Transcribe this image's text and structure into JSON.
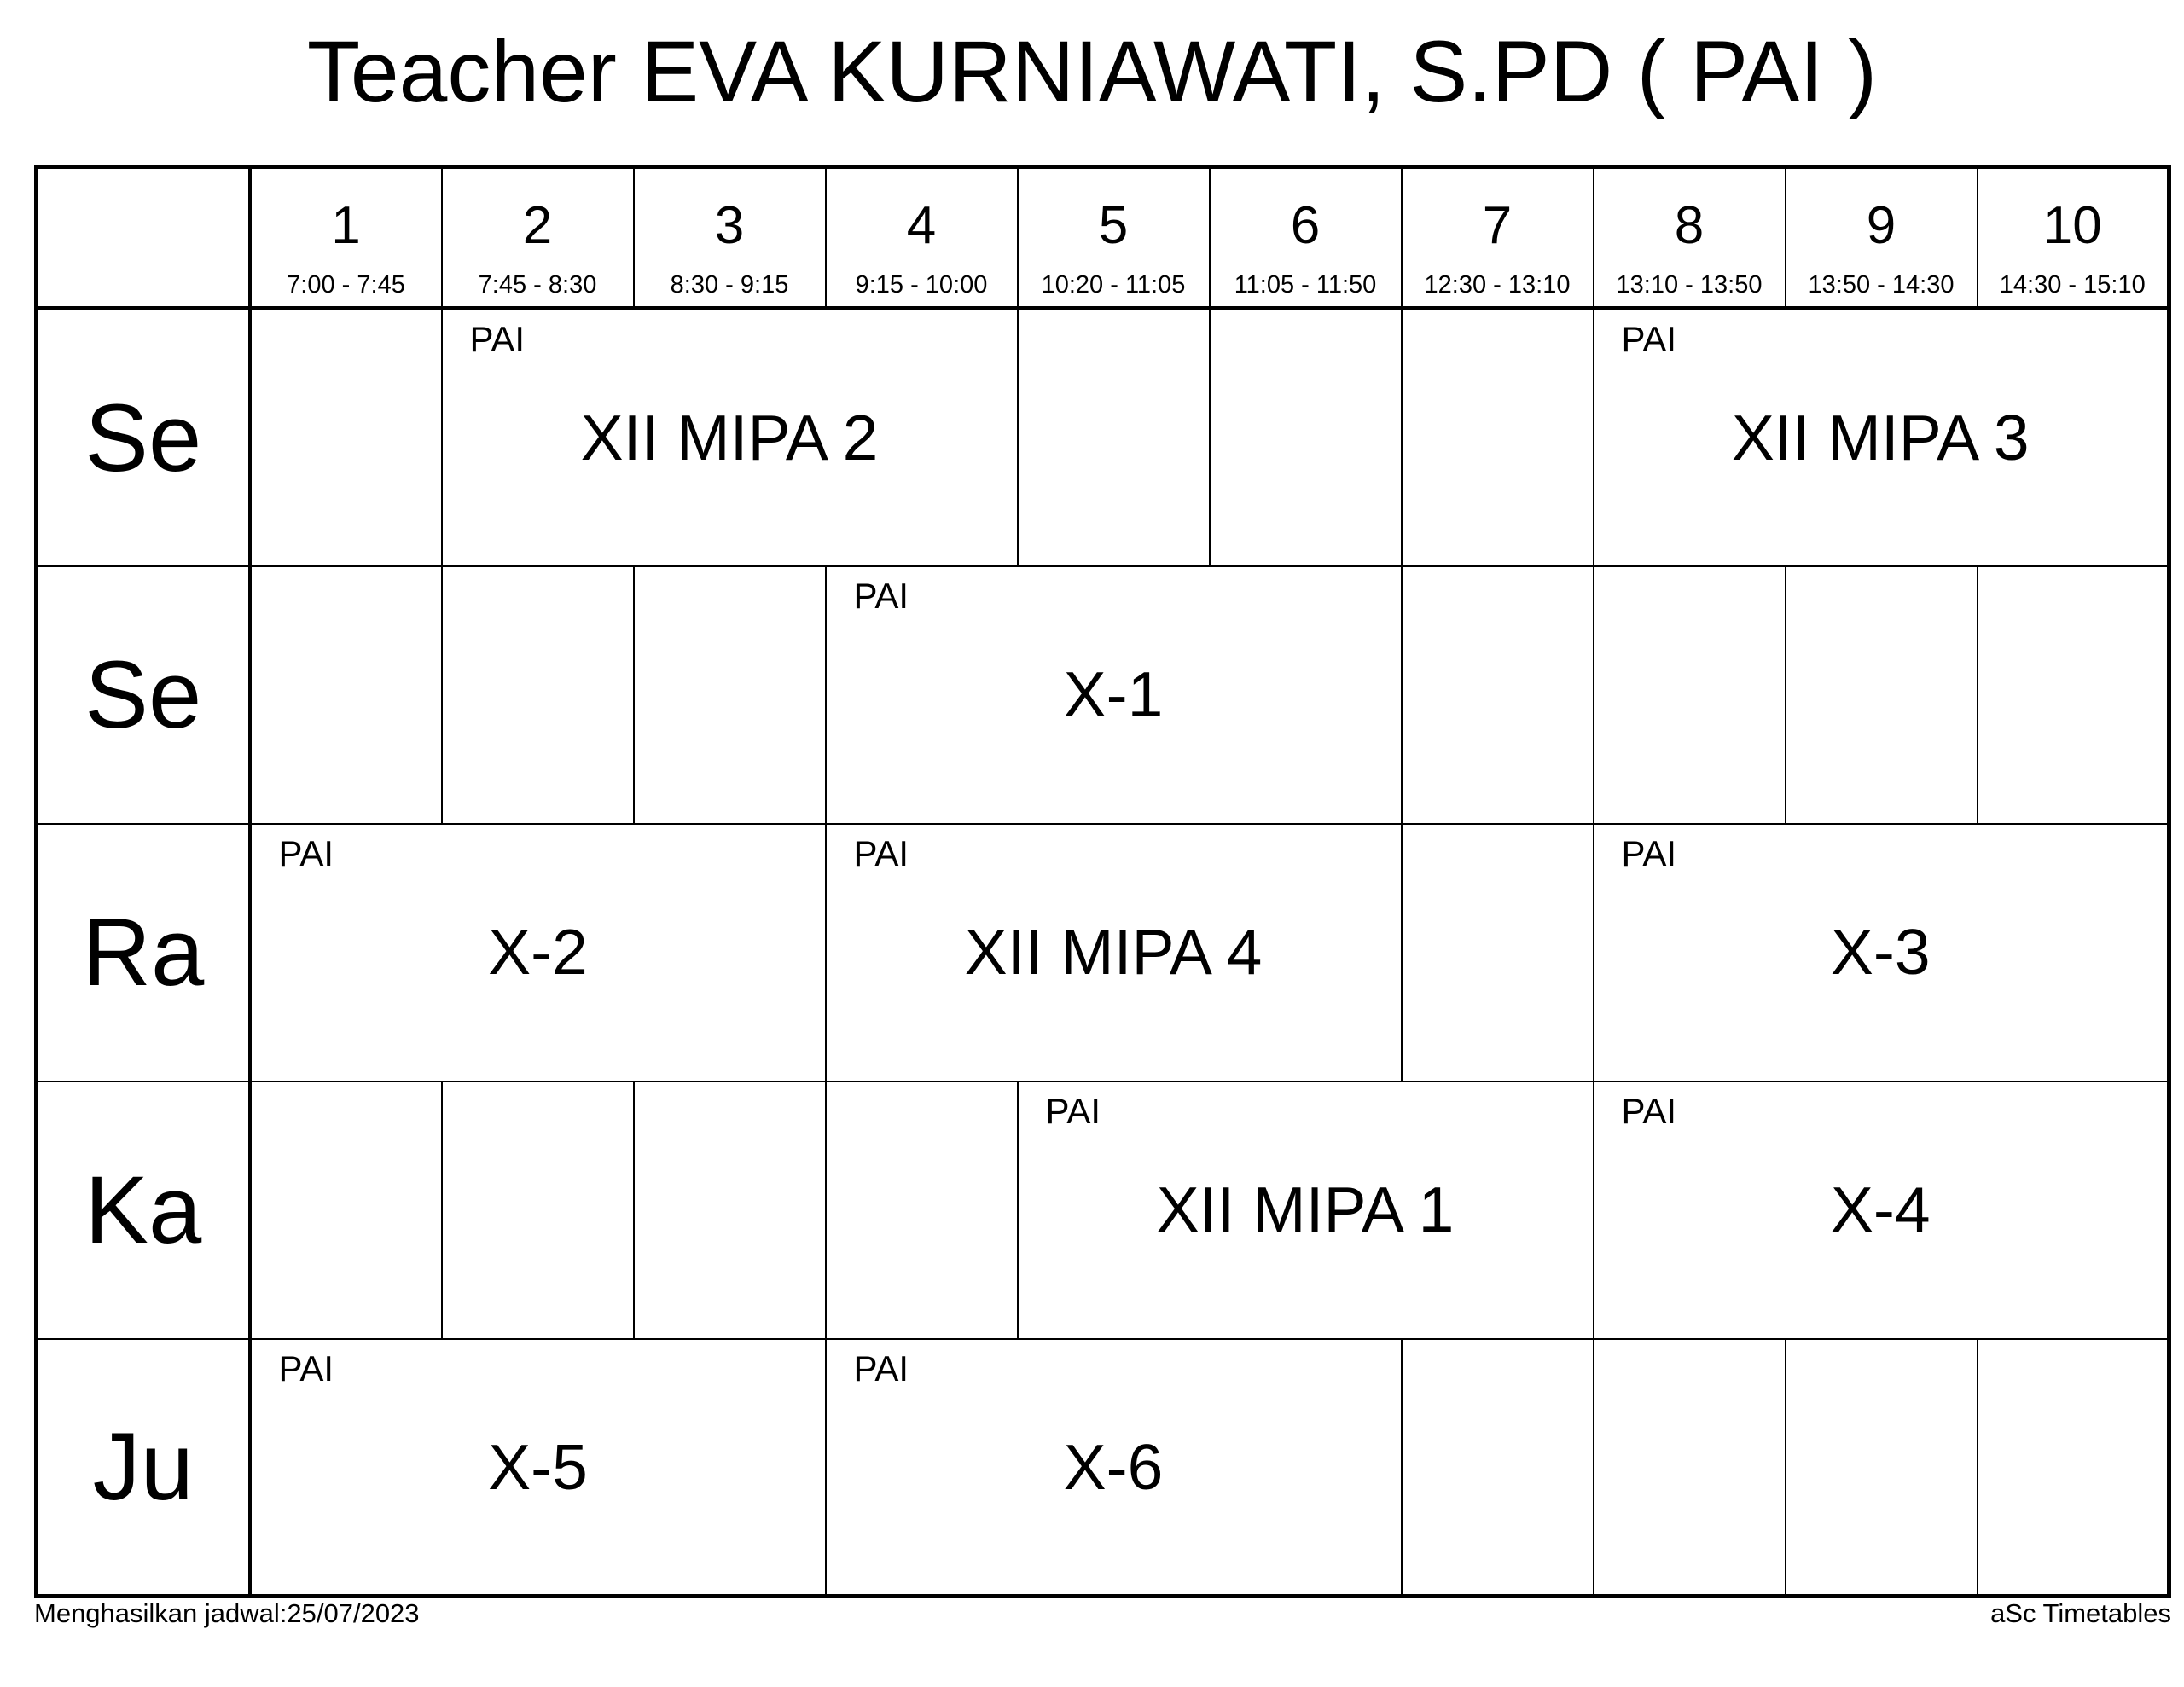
{
  "title": "Teacher EVA KURNIAWATI, S.PD ( PAI )",
  "header": {
    "periods": [
      {
        "number": "1",
        "time": "7:00 - 7:45"
      },
      {
        "number": "2",
        "time": "7:45 - 8:30"
      },
      {
        "number": "3",
        "time": "8:30 - 9:15"
      },
      {
        "number": "4",
        "time": "9:15 - 10:00"
      },
      {
        "number": "5",
        "time": "10:20 - 11:05"
      },
      {
        "number": "6",
        "time": "11:05 - 11:50"
      },
      {
        "number": "7",
        "time": "12:30 - 13:10"
      },
      {
        "number": "8",
        "time": "13:10 - 13:50"
      },
      {
        "number": "9",
        "time": "13:50 - 14:30"
      },
      {
        "number": "10",
        "time": "14:30 - 15:10"
      }
    ]
  },
  "rows": [
    {
      "day": "Se",
      "cells": [
        {
          "type": "empty",
          "span": 1
        },
        {
          "type": "lesson",
          "span": 3,
          "periods": "2-4",
          "subject": "PAI",
          "class_name": "XII MIPA 2"
        },
        {
          "type": "empty",
          "span": 1
        },
        {
          "type": "empty",
          "span": 1
        },
        {
          "type": "empty",
          "span": 1
        },
        {
          "type": "lesson",
          "span": 3,
          "periods": "8-10",
          "subject": "PAI",
          "class_name": "XII MIPA 3"
        }
      ]
    },
    {
      "day": "Se",
      "cells": [
        {
          "type": "empty",
          "span": 1
        },
        {
          "type": "empty",
          "span": 1
        },
        {
          "type": "empty",
          "span": 1
        },
        {
          "type": "lesson",
          "span": 3,
          "periods": "4-6",
          "subject": "PAI",
          "class_name": "X-1"
        },
        {
          "type": "empty",
          "span": 1
        },
        {
          "type": "empty",
          "span": 1
        },
        {
          "type": "empty",
          "span": 1
        },
        {
          "type": "empty",
          "span": 1
        }
      ]
    },
    {
      "day": "Ra",
      "cells": [
        {
          "type": "lesson",
          "span": 3,
          "periods": "1-3",
          "subject": "PAI",
          "class_name": "X-2"
        },
        {
          "type": "lesson",
          "span": 3,
          "periods": "4-6",
          "subject": "PAI",
          "class_name": "XII MIPA 4"
        },
        {
          "type": "empty",
          "span": 1
        },
        {
          "type": "lesson",
          "span": 3,
          "periods": "8-10",
          "subject": "PAI",
          "class_name": "X-3"
        }
      ]
    },
    {
      "day": "Ka",
      "cells": [
        {
          "type": "empty",
          "span": 1
        },
        {
          "type": "empty",
          "span": 1
        },
        {
          "type": "empty",
          "span": 1
        },
        {
          "type": "empty",
          "span": 1
        },
        {
          "type": "lesson",
          "span": 3,
          "periods": "5-7",
          "subject": "PAI",
          "class_name": "XII MIPA 1"
        },
        {
          "type": "lesson",
          "span": 3,
          "periods": "8-10",
          "subject": "PAI",
          "class_name": "X-4"
        }
      ]
    },
    {
      "day": "Ju",
      "cells": [
        {
          "type": "lesson",
          "span": 3,
          "periods": "1-3",
          "subject": "PAI",
          "class_name": "X-5"
        },
        {
          "type": "lesson",
          "span": 3,
          "periods": "4-6",
          "subject": "PAI",
          "class_name": "X-6"
        },
        {
          "type": "empty",
          "span": 1
        },
        {
          "type": "empty",
          "span": 1
        },
        {
          "type": "empty",
          "span": 1
        },
        {
          "type": "empty",
          "span": 1
        }
      ]
    }
  ],
  "footer": {
    "generated": "Menghasilkan jadwal:25/07/2023",
    "brand": "aSc Timetables"
  },
  "colors": {
    "background": "#ffffff",
    "text": "#000000",
    "border": "#000000"
  }
}
